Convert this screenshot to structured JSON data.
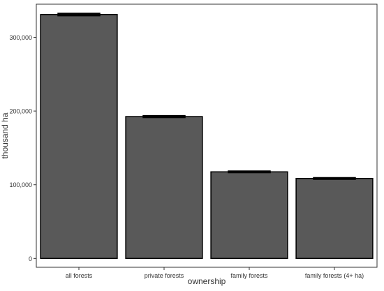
{
  "chart_data": {
    "type": "bar",
    "xlabel": "ownership",
    "ylabel": "thousand ha",
    "categories": [
      "all forests",
      "private forests",
      "family forests",
      "family forests (4+ ha)"
    ],
    "values": [
      331000,
      192500,
      117500,
      108500
    ],
    "errors": [
      1500,
      1100,
      900,
      1000
    ],
    "ylim": [
      -12000,
      345000
    ],
    "yticks": [
      0,
      100000,
      200000,
      300000
    ],
    "ytick_labels": [
      "0",
      "100,000",
      "200,000",
      "300,000"
    ],
    "grid": false,
    "legend": "none",
    "colors": {
      "bar_fill": "#595959",
      "bar_stroke": "#000000",
      "error_bar": "#000000",
      "panel_border": "#333333"
    }
  }
}
